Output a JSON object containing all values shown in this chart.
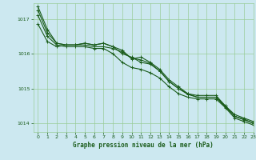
{
  "title": "Graphe pression niveau de la mer (hPa)",
  "background_color": "#cce8f0",
  "grid_color": "#99cc99",
  "line_color": "#1a5c1a",
  "text_color": "#1a5c1a",
  "xlim": [
    -0.5,
    23
  ],
  "ylim": [
    1013.75,
    1017.45
  ],
  "yticks": [
    1014,
    1015,
    1016,
    1017
  ],
  "xticks": [
    0,
    1,
    2,
    3,
    4,
    5,
    6,
    7,
    8,
    9,
    10,
    11,
    12,
    13,
    14,
    15,
    16,
    17,
    18,
    19,
    20,
    21,
    22,
    23
  ],
  "series": [
    [
      1017.35,
      1016.7,
      1016.3,
      1016.25,
      1016.25,
      1016.3,
      1016.25,
      1016.3,
      1016.2,
      1016.1,
      1015.85,
      1015.9,
      1015.75,
      1015.55,
      1015.25,
      1015.05,
      1014.85,
      1014.8,
      1014.8,
      1014.8,
      1014.5,
      1014.25,
      1014.15,
      1014.05
    ],
    [
      1016.85,
      1016.35,
      1016.2,
      1016.25,
      1016.25,
      1016.3,
      1016.25,
      1016.3,
      1016.2,
      1016.0,
      1015.9,
      1015.75,
      1015.7,
      1015.5,
      1015.2,
      1015.0,
      1014.85,
      1014.75,
      1014.75,
      1014.75,
      1014.5,
      1014.2,
      1014.1,
      1014.0
    ],
    [
      1017.1,
      1016.5,
      1016.25,
      1016.2,
      1016.2,
      1016.2,
      1016.15,
      1016.15,
      1016.0,
      1015.75,
      1015.6,
      1015.55,
      1015.45,
      1015.3,
      1015.05,
      1014.85,
      1014.75,
      1014.7,
      1014.7,
      1014.7,
      1014.45,
      1014.15,
      1014.05,
      1013.95
    ],
    [
      1017.25,
      1016.6,
      1016.3,
      1016.25,
      1016.25,
      1016.25,
      1016.2,
      1016.2,
      1016.15,
      1016.05,
      1015.87,
      1015.82,
      1015.72,
      1015.5,
      1015.2,
      1015.0,
      1014.83,
      1014.75,
      1014.75,
      1014.75,
      1014.47,
      1014.2,
      1014.12,
      1014.0
    ]
  ]
}
